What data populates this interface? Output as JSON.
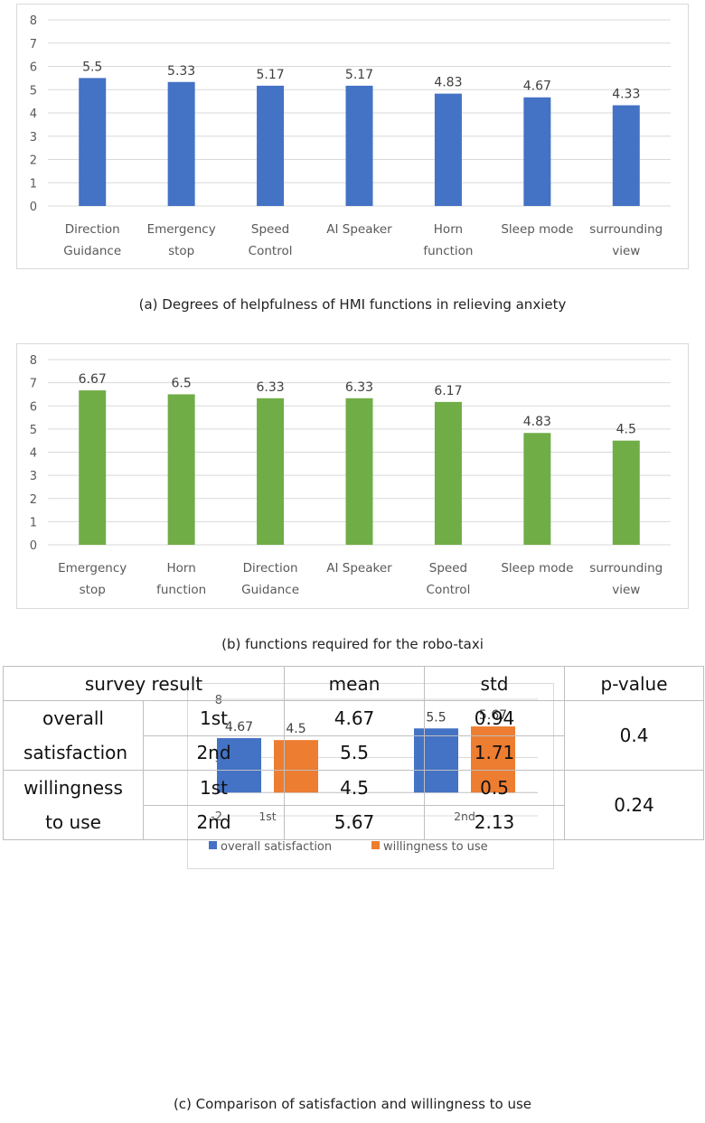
{
  "chart_data": [
    {
      "type": "bar",
      "caption": "(a) Degrees of helpfulness of HMI functions in relieving anxiety",
      "categories": [
        [
          "Direction",
          "Guidance"
        ],
        [
          "Emergency",
          "stop"
        ],
        [
          "Speed",
          "Control"
        ],
        [
          "AI Speaker"
        ],
        [
          "Horn",
          "function"
        ],
        [
          "Sleep mode"
        ],
        [
          "surrounding",
          "view"
        ]
      ],
      "values": [
        5.5,
        5.33,
        5.17,
        5.17,
        4.83,
        4.67,
        4.33
      ],
      "value_labels": [
        "5.5",
        "5.33",
        "5.17",
        "5.17",
        "4.83",
        "4.67",
        "4.33"
      ],
      "ylim": [
        0,
        8
      ],
      "yticks": [
        0,
        1,
        2,
        3,
        4,
        5,
        6,
        7,
        8
      ],
      "ytick_labels": [
        "0",
        "1",
        "2",
        "3",
        "4",
        "5",
        "6",
        "7",
        "8"
      ],
      "grid": true,
      "color": "#4472c4"
    },
    {
      "type": "bar",
      "caption": "(b) functions required for the robo-taxi",
      "categories": [
        [
          "Emergency",
          "stop"
        ],
        [
          "Horn",
          "function"
        ],
        [
          "Direction",
          "Guidance"
        ],
        [
          "AI Speaker"
        ],
        [
          "Speed",
          "Control"
        ],
        [
          "Sleep mode"
        ],
        [
          "surrounding",
          "view"
        ]
      ],
      "values": [
        6.67,
        6.5,
        6.33,
        6.33,
        6.17,
        4.83,
        4.5
      ],
      "value_labels": [
        "6.67",
        "6.5",
        "6.33",
        "6.33",
        "6.17",
        "4.83",
        "4.5"
      ],
      "ylim": [
        0,
        8
      ],
      "yticks": [
        0,
        1,
        2,
        3,
        4,
        5,
        6,
        7,
        8
      ],
      "ytick_labels": [
        "0",
        "1",
        "2",
        "3",
        "4",
        "5",
        "6",
        "7",
        "8"
      ],
      "grid": true,
      "color": "#70ad47"
    },
    {
      "type": "bar",
      "caption": "(c) Comparison of satisfaction and willingness to use",
      "categories": [
        "1st",
        "2nd"
      ],
      "series": [
        {
          "name": "overall satisfaction",
          "values": [
            4.67,
            5.5
          ],
          "value_labels": [
            "4.67",
            "5.5"
          ],
          "color": "#4472c4"
        },
        {
          "name": "willingness to use",
          "values": [
            4.5,
            5.67
          ],
          "value_labels": [
            "4.5",
            "5.67"
          ],
          "color": "#ed7d31"
        }
      ],
      "ylim": [
        -2,
        8
      ],
      "yticks": [
        -2,
        3,
        8
      ],
      "ytick_labels": [
        "-2",
        "3",
        "8"
      ],
      "legend": "bottom",
      "grid": true
    }
  ],
  "table": {
    "header": {
      "survey_result": "survey result",
      "mean": "mean",
      "std": "std",
      "pvalue": "p-value"
    },
    "groups": [
      {
        "label": "overall satisfaction",
        "pvalue": "0.4",
        "rows": [
          {
            "round": "1st",
            "mean": "4.67",
            "std": "0.94"
          },
          {
            "round": "2nd",
            "mean": "5.5",
            "std": "1.71"
          }
        ]
      },
      {
        "label": "willingness to use",
        "pvalue": "0.24",
        "rows": [
          {
            "round": "1st",
            "mean": "4.5",
            "std": "0.5"
          },
          {
            "round": "2nd",
            "mean": "5.67",
            "std": "2.13"
          }
        ]
      }
    ]
  }
}
